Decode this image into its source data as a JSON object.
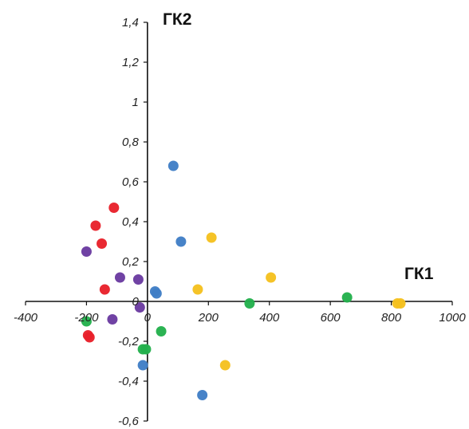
{
  "chart_data": {
    "type": "scatter",
    "title": "",
    "xlabel": "ГК1",
    "ylabel": "ГК2",
    "xlim": [
      -400,
      1000
    ],
    "ylim": [
      -0.6,
      1.4
    ],
    "xticks": [
      -400,
      -200,
      0,
      200,
      400,
      600,
      800,
      1000
    ],
    "xtick_labels": [
      "-400",
      "-200",
      "0",
      "200",
      "400",
      "600",
      "800",
      "1000"
    ],
    "yticks": [
      1.4,
      1.2,
      1.0,
      0.8,
      0.6,
      0.4,
      0.2,
      0.0,
      -0.2,
      -0.4,
      -0.6
    ],
    "ytick_labels": [
      "1,4",
      "1,2",
      "1",
      "0,8",
      "0,6",
      "0,4",
      "0,2",
      "0",
      "-0,2",
      "-0,4",
      "-0,6"
    ],
    "grid": false,
    "legend": "none",
    "series": [
      {
        "color": "#e8202a",
        "points": [
          {
            "x": -110,
            "y": 0.47
          },
          {
            "x": -170,
            "y": 0.38
          },
          {
            "x": -150,
            "y": 0.29
          },
          {
            "x": -140,
            "y": 0.06
          },
          {
            "x": -195,
            "y": -0.17
          },
          {
            "x": -190,
            "y": -0.18
          }
        ]
      },
      {
        "color": "#6a3aa0",
        "points": [
          {
            "x": -200,
            "y": 0.25
          },
          {
            "x": -90,
            "y": 0.12
          },
          {
            "x": -30,
            "y": 0.11
          },
          {
            "x": -25,
            "y": -0.03
          },
          {
            "x": -115,
            "y": -0.09
          }
        ]
      },
      {
        "color": "#22b04c",
        "points": [
          {
            "x": -200,
            "y": -0.1
          },
          {
            "x": 45,
            "y": -0.15
          },
          {
            "x": -15,
            "y": -0.24
          },
          {
            "x": -5,
            "y": -0.24
          },
          {
            "x": 335,
            "y": -0.01
          },
          {
            "x": 655,
            "y": 0.02
          }
        ]
      },
      {
        "color": "#3f7ec6",
        "points": [
          {
            "x": 85,
            "y": 0.68
          },
          {
            "x": 110,
            "y": 0.3
          },
          {
            "x": 30,
            "y": 0.04
          },
          {
            "x": 25,
            "y": 0.05
          },
          {
            "x": -15,
            "y": -0.32
          },
          {
            "x": 180,
            "y": -0.47
          }
        ]
      },
      {
        "color": "#f5c11e",
        "points": [
          {
            "x": 210,
            "y": 0.32
          },
          {
            "x": 405,
            "y": 0.12
          },
          {
            "x": 165,
            "y": 0.06
          },
          {
            "x": 255,
            "y": -0.32
          },
          {
            "x": 830,
            "y": -0.01
          },
          {
            "x": 820,
            "y": -0.01
          }
        ]
      }
    ]
  }
}
